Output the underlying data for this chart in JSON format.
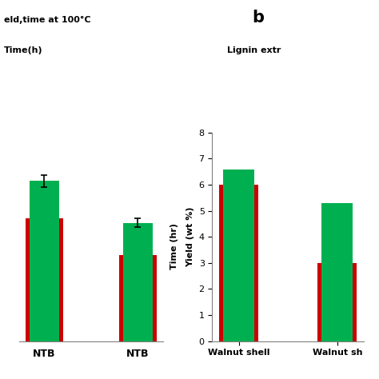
{
  "panel_a": {
    "title_line1": "eld,time at 100°C",
    "title_line2": "Time(h)",
    "ylabel": "Time (hr)",
    "categories": [
      "NTB",
      "NTB"
    ],
    "green_values": [
      6.5,
      4.8
    ],
    "red_values": [
      5.0,
      3.5
    ],
    "green_errors": [
      0.25,
      0.18
    ],
    "ylim": [
      0,
      8
    ]
  },
  "panel_b": {
    "label": "b",
    "subtitle": "Lignin extr",
    "ylabel": "Yield (wt %)",
    "categories": [
      "Walnut shell",
      "Walnut sh"
    ],
    "green_values": [
      6.6,
      5.3
    ],
    "red_values": [
      6.0,
      3.0
    ],
    "ylim": [
      0,
      8
    ],
    "yticks": [
      0,
      1,
      2,
      3,
      4,
      5,
      6,
      7,
      8
    ]
  },
  "green_color": "#00b050",
  "red_color": "#cc0000",
  "bg_color": "#ffffff",
  "bar_width": 0.32
}
